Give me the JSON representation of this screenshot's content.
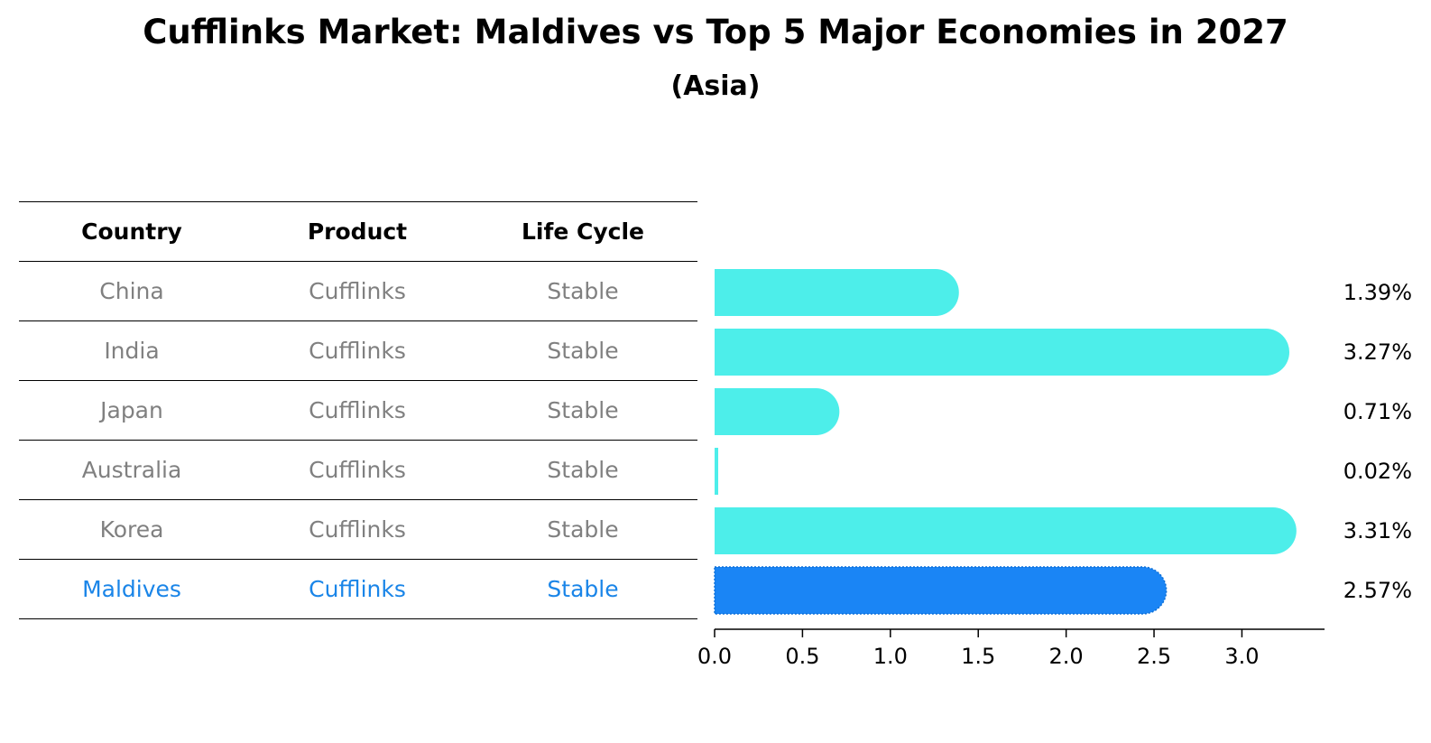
{
  "chart_data": {
    "type": "bar",
    "title": "Cufflinks Market: Maldives vs Top 5 Major Economies in 2027",
    "subtitle": "(Asia)",
    "table": {
      "headers": [
        "Country",
        "Product",
        "Life Cycle"
      ],
      "rows": [
        {
          "country": "China",
          "product": "Cufflinks",
          "life_cycle": "Stable"
        },
        {
          "country": "India",
          "product": "Cufflinks",
          "life_cycle": "Stable"
        },
        {
          "country": "Japan",
          "product": "Cufflinks",
          "life_cycle": "Stable"
        },
        {
          "country": "Australia",
          "product": "Cufflinks",
          "life_cycle": "Stable"
        },
        {
          "country": "Korea",
          "product": "Cufflinks",
          "life_cycle": "Stable"
        },
        {
          "country": "Maldives",
          "product": "Cufflinks",
          "life_cycle": "Stable"
        }
      ]
    },
    "categories": [
      "China",
      "India",
      "Japan",
      "Australia",
      "Korea",
      "Maldives"
    ],
    "values": [
      1.39,
      3.27,
      0.71,
      0.02,
      3.31,
      2.57
    ],
    "value_labels": [
      "1.39%",
      "3.27%",
      "0.71%",
      "0.02%",
      "3.31%",
      "2.57%"
    ],
    "highlight": "Maldives",
    "xlim": [
      0,
      3.47
    ],
    "xticks": [
      0.0,
      0.5,
      1.0,
      1.5,
      2.0,
      2.5,
      3.0
    ],
    "xtick_labels": [
      "0.0",
      "0.5",
      "1.0",
      "1.5",
      "2.0",
      "2.5",
      "3.0"
    ],
    "colors": {
      "bar": "#4deeea",
      "highlight": "#1a85f5",
      "highlight_text": "#1a85e8",
      "text_muted": "#808080"
    }
  }
}
